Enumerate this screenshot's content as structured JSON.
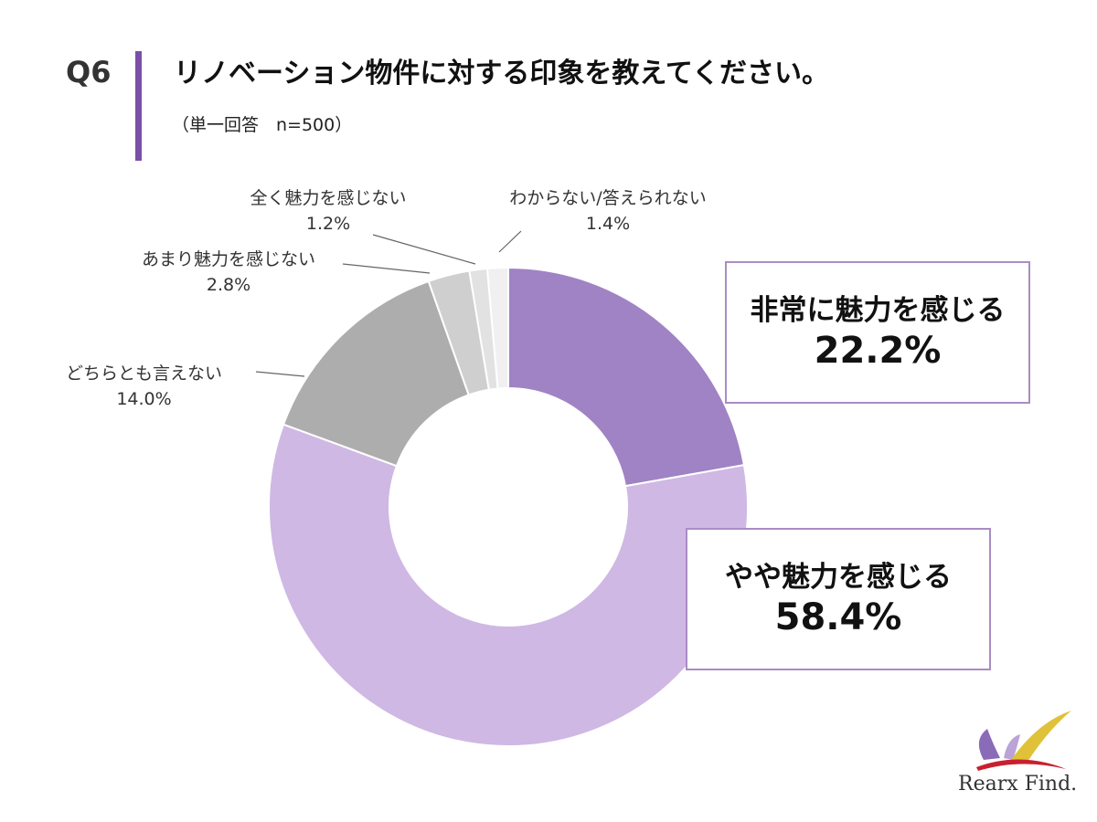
{
  "header": {
    "qnum": "Q6",
    "title": "リノベーション物件に対する印象を教えてください。",
    "subtitle": "（単一回答　n=500）"
  },
  "chart_data": {
    "type": "pie",
    "style": "donut",
    "categories": [
      "非常に魅力を感じる",
      "やや魅力を感じる",
      "どちらとも言えない",
      "あまり魅力を感じない",
      "全く魅力を感じない",
      "わからない/答えられない"
    ],
    "values": [
      22.2,
      58.4,
      14.0,
      2.8,
      1.2,
      1.4
    ],
    "value_labels": [
      "22.2%",
      "58.4%",
      "14.0%",
      "2.8%",
      "1.2%",
      "1.4%"
    ],
    "colors": [
      "#a083c4",
      "#cfb8e4",
      "#adadad",
      "#cfcfcf",
      "#e2e2e2",
      "#f0f0f0"
    ],
    "start": "12 o'clock",
    "direction": "clockwise"
  },
  "brand": {
    "logo_text": "Rearx Find."
  }
}
